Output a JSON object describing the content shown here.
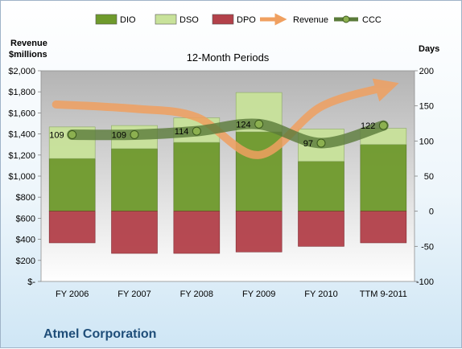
{
  "chart_data": {
    "type": "bar",
    "subtitle": "12-Month Periods",
    "left_axis_title": "Revenue\n$millions",
    "right_axis_title": "Days",
    "categories": [
      "FY 2006",
      "FY 2007",
      "FY 2008",
      "FY 2009",
      "FY 2010",
      "TTM 9-2011"
    ],
    "left_axis": {
      "min": 0,
      "max": 2000,
      "step": 200,
      "tick_labels": [
        "$-",
        "$200",
        "$400",
        "$600",
        "$800",
        "$1,000",
        "$1,200",
        "$1,400",
        "$1,600",
        "$1,800",
        "$2,000"
      ]
    },
    "right_axis": {
      "min": -100,
      "max": 200,
      "step": 50,
      "tick_labels": [
        "-100",
        "-50",
        "0",
        "50",
        "100",
        "150",
        "200"
      ]
    },
    "series": [
      {
        "name": "DIO",
        "axis": "days",
        "kind": "stacked-bar",
        "color": "#6f9a2c",
        "values": [
          75,
          89,
          98,
          113,
          71,
          95
        ]
      },
      {
        "name": "DSO",
        "axis": "days",
        "kind": "stacked-bar",
        "color": "#c8e29a",
        "values": [
          45,
          33,
          35,
          56,
          46,
          23
        ]
      },
      {
        "name": "DPO",
        "axis": "days",
        "kind": "negative-bar",
        "color": "#b3414a",
        "values": [
          -45,
          -60,
          -60,
          -58,
          -50,
          -45
        ]
      },
      {
        "name": "Revenue",
        "axis": "revenue",
        "kind": "arrow-line",
        "color": "#f0a060",
        "values": [
          1680,
          1640,
          1560,
          1200,
          1660,
          1850
        ]
      },
      {
        "name": "CCC",
        "axis": "days",
        "kind": "line",
        "color": "#5a7a3a",
        "values": [
          109,
          109,
          114,
          124,
          97,
          122
        ],
        "labels": [
          "109",
          "109",
          "114",
          "124",
          "97",
          "122"
        ]
      }
    ],
    "legend_position": "top",
    "grid": false
  },
  "company_name": "Atmel Corporation"
}
